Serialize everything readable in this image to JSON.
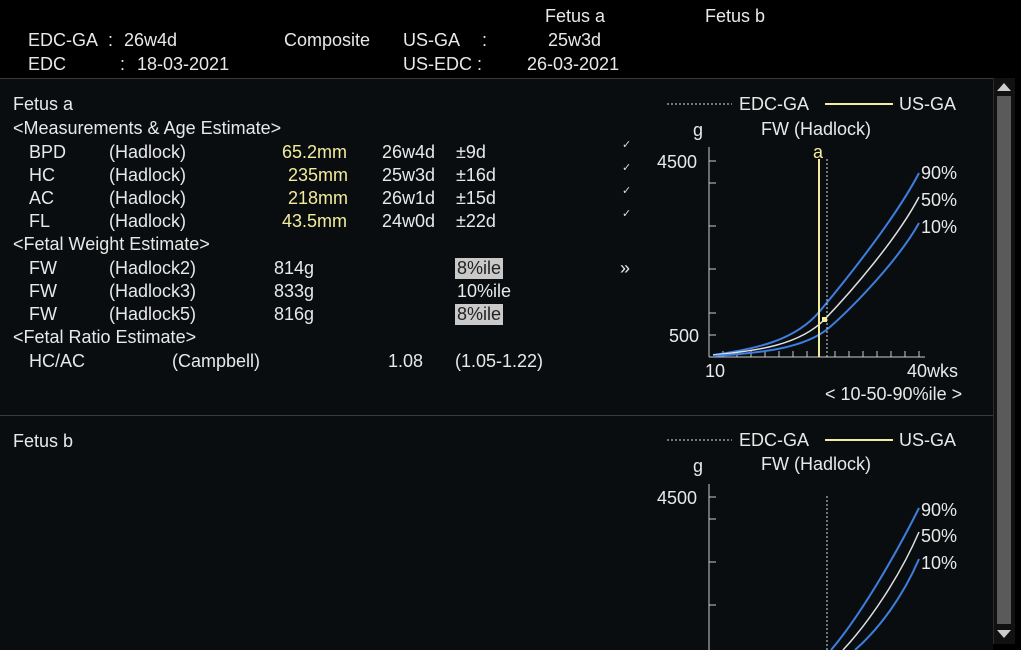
{
  "header": {
    "edc_ga_label": "EDC-GA",
    "edc_ga_colon": ":",
    "edc_ga_value": "26w4d",
    "edc_label": "EDC",
    "edc_colon": ":",
    "edc_value": "18-03-2021",
    "composite_label": "Composite",
    "us_ga_label": "US-GA",
    "us_ga_colon": ":",
    "us_edc_label": "US-EDC :",
    "fetus_a_col": "Fetus a",
    "fetus_b_col": "Fetus b",
    "fetus_a_us_ga": "25w3d",
    "fetus_a_us_edc": "26-03-2021"
  },
  "fetus_a": {
    "title": "Fetus a",
    "measurements_title": "<Measurements & Age Estimate>",
    "measurements": [
      {
        "name": "BPD",
        "method": "(Hadlock)",
        "value": "65.2mm",
        "ga": "26w4d",
        "sd": "±9d",
        "check": "✓"
      },
      {
        "name": "HC",
        "method": "(Hadlock)",
        "value": "235mm",
        "ga": "25w3d",
        "sd": "±16d",
        "check": "✓"
      },
      {
        "name": "AC",
        "method": "(Hadlock)",
        "value": "218mm",
        "ga": "26w1d",
        "sd": "±15d",
        "check": "✓"
      },
      {
        "name": "FL",
        "method": "(Hadlock)",
        "value": "43.5mm",
        "ga": "24w0d",
        "sd": "±22d",
        "check": "✓"
      }
    ],
    "weight_title": "<Fetal Weight Estimate>",
    "weights": [
      {
        "name": "FW",
        "method": "(Hadlock2)",
        "value": "814g",
        "pct": "8%ile"
      },
      {
        "name": "FW",
        "method": "(Hadlock3)",
        "value": "833g",
        "pct": "10%ile"
      },
      {
        "name": "FW",
        "method": "(Hadlock5)",
        "value": "816g",
        "pct": "8%ile"
      }
    ],
    "more_glyph": "»",
    "ratio_title": "<Fetal Ratio Estimate>",
    "ratio": {
      "name": "HC/AC",
      "method": "(Campbell)",
      "value": "1.08",
      "range": "(1.05-1.22)"
    }
  },
  "fetus_b": {
    "title": "Fetus b"
  },
  "chart_a": {
    "legend_edc": "EDC-GA",
    "legend_us": "US-GA",
    "unit": "g",
    "title": "FW (Hadlock)",
    "y_top": "4500",
    "y_bottom": "500",
    "x_left": "10",
    "x_right": "40wks",
    "marker": "a",
    "p90": "90%",
    "p50": "50%",
    "p10": "10%",
    "footer": "< 10-50-90%ile >"
  },
  "chart_b": {
    "legend_edc": "EDC-GA",
    "legend_us": "US-GA",
    "unit": "g",
    "title": "FW (Hadlock)",
    "y_top": "4500",
    "p90": "90%",
    "p50": "50%",
    "p10": "10%"
  },
  "colors": {
    "accent_yellow": "#f3ec9a",
    "curve_blue": "#3d7fe0",
    "curve_white": "#e0e0e0"
  }
}
